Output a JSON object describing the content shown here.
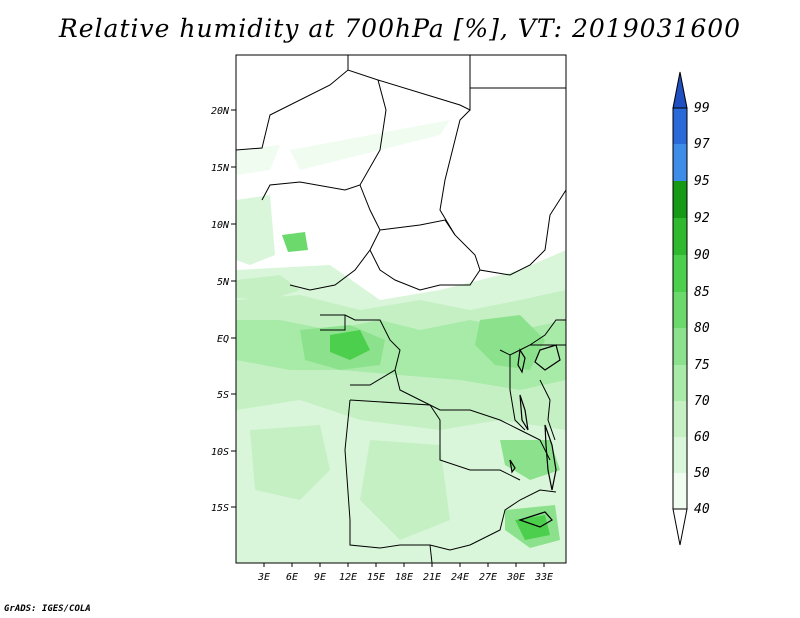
{
  "title": "Relative humidity at 700hPa [%], VT: 2019031600",
  "credit": "GrADS: IGES/COLA",
  "map": {
    "lon_ticks": [
      "3E",
      "6E",
      "9E",
      "12E",
      "15E",
      "18E",
      "21E",
      "24E",
      "27E",
      "30E",
      "33E"
    ],
    "lat_ticks": [
      "20N",
      "15N",
      "10N",
      "5N",
      "EQ",
      "5S",
      "10S",
      "15S"
    ]
  },
  "colorbar": {
    "levels": [
      "40",
      "50",
      "60",
      "70",
      "75",
      "80",
      "85",
      "90",
      "92",
      "95",
      "97",
      "99"
    ],
    "colors": [
      "#f0fcf0",
      "#daf6da",
      "#c4f0c4",
      "#a8eaa8",
      "#8ce28c",
      "#6cd96c",
      "#4ccf4c",
      "#2eb92e",
      "#169a16",
      "#3c8ce8",
      "#2a6ad8",
      "#1f4fc0"
    ]
  }
}
